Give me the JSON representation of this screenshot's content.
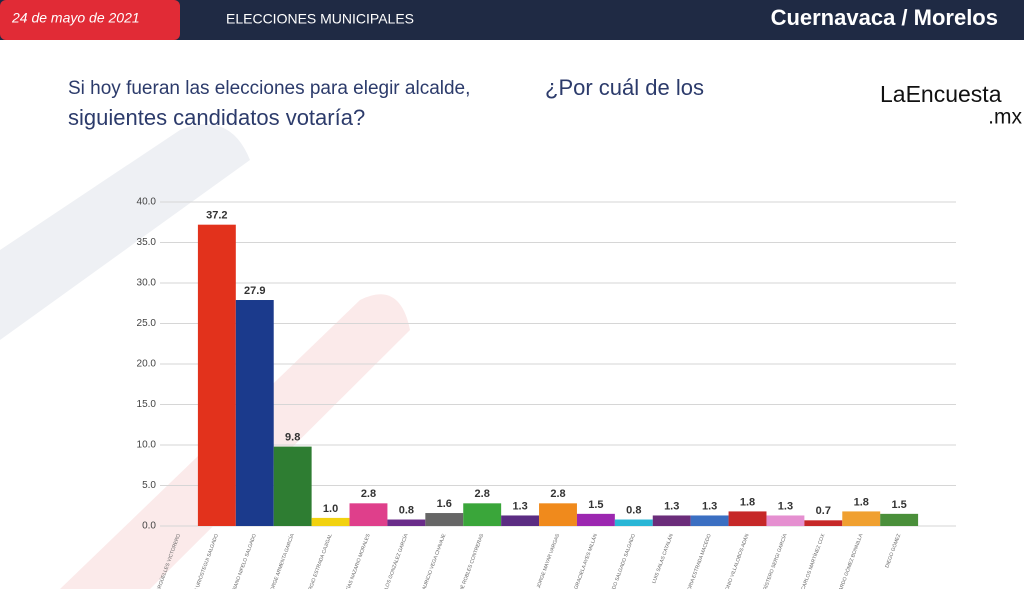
{
  "header": {
    "date": "24 de mayo de 2021",
    "section": "ELECCIONES MUNICIPALES",
    "place": "Cuernavaca / Morelos"
  },
  "brand": {
    "name": "LaEncuesta",
    "suffix": ".mx"
  },
  "chart_data": {
    "type": "bar",
    "title": "Si hoy fueran las elecciones para elegir alcalde,",
    "subtitle": "¿Por cuál de los siguientes candidatos votaría?",
    "categories": [
      "JORGE ARGÜELLES VICTORERO",
      "JOSÉ LUIS URIÓSTEGUI SALGADO",
      "CIPRIANO NIFELO SALGADO",
      "JORGE ARMENTA GARCÍA",
      "SERGIO ESTRADA CAJIGAL",
      "MATÍAS NAZARIO MORALES",
      "CARLOS GONZÁLEZ GARCÍA",
      "MAURICIO VEGA CHAVAJE",
      "NOÉ ROBLES CONTRERAS",
      null,
      "JORGE MAYAR VARGAS",
      "GRACIELA AYES MILLÁN",
      "ALFREDO SALGADO SALGADO",
      "LUIS SALAS CATALÁN",
      "HONORIA ESTRADA MACEDO",
      "ANTONIO VILLALOBOS ADÁN",
      "ARÍSTERO SERGI GARCÍA",
      "CARLOS MARTÍNEZ COX",
      "GERARDO GÓMEZ BONNILLA",
      "DIEGO GÓMEZ",
      null
    ],
    "values": [
      null,
      37.2,
      27.9,
      9.8,
      1.0,
      2.8,
      0.8,
      1.6,
      2.8,
      1.3,
      2.8,
      1.5,
      0.8,
      1.3,
      1.3,
      1.8,
      1.3,
      0.7,
      1.8,
      1.5,
      null
    ],
    "value_labels": [
      null,
      "37.2",
      "27.9",
      "9.8",
      "1.0",
      "2.8",
      "0.8",
      "1.6",
      "2.8",
      "1.3",
      "2.8",
      "1.5",
      "0.8",
      "1.3",
      "1.3",
      "1.8",
      "1.3",
      "0.7",
      "1.8",
      "1.5",
      null
    ],
    "colors": [
      null,
      "#e2321c",
      "#1b3a8c",
      "#2e7d32",
      "#f2d20f",
      "#df3f8b",
      "#6a2c8a",
      "#666666",
      "#3aa63a",
      "#5b2c82",
      "#f08a1c",
      "#9c27b0",
      "#29b6d6",
      "#6b2d7a",
      "#3b6fc2",
      "#c62828",
      "#e58fd0",
      "#c62828",
      "#f0a030",
      "#4a8f3a",
      null
    ],
    "ylim": [
      0,
      40
    ],
    "yticks": [
      {
        "value": 0,
        "label": "0.0"
      },
      {
        "value": 5,
        "label": "5.0"
      },
      {
        "value": 10,
        "label": "10.0"
      },
      {
        "value": 15,
        "label": "15.0"
      },
      {
        "value": 20,
        "label": "20.0"
      },
      {
        "value": 25,
        "label": "25.0"
      },
      {
        "value": 30,
        "label": "30.0"
      },
      {
        "value": 35,
        "label": "35.0"
      },
      {
        "value": 40,
        "label": "40.0"
      }
    ],
    "grid": true
  }
}
